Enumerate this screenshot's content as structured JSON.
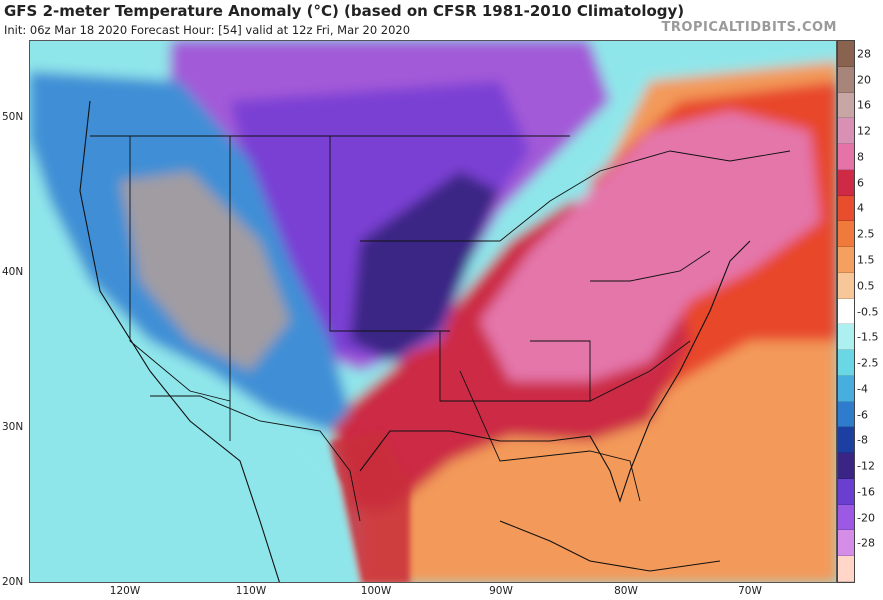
{
  "header": {
    "title": "GFS 2-meter Temperature Anomaly (°C) (based on CFSR 1981-2010 Climatology)",
    "subtitle": "Init: 06z Mar 18 2020   Forecast Hour: [54]   valid at 12z Fri, Mar 20 2020",
    "brand": "TROPICALTIDBITS.COM"
  },
  "axes": {
    "lat_labels": [
      "50N",
      "40N",
      "30N",
      "20N"
    ],
    "lon_labels": [
      "120W",
      "110W",
      "100W",
      "90W",
      "80W",
      "70W"
    ]
  },
  "legend": {
    "ticks": [
      "28",
      "20",
      "16",
      "12",
      "8",
      "6",
      "4",
      "2.5",
      "1.5",
      "0.5",
      "-0.5",
      "-1.5",
      "-2.5",
      "-4",
      "-6",
      "-8",
      "-12",
      "-16",
      "-20",
      "-28"
    ],
    "colors": [
      "#8a6350",
      "#a8857a",
      "#c8a6a6",
      "#d890b4",
      "#e573a8",
      "#ce2a46",
      "#e84d2d",
      "#ef7a3c",
      "#f4a060",
      "#f7c79a",
      "#ffffff",
      "#aef0f0",
      "#6ad7e4",
      "#48aee0",
      "#2f7ccd",
      "#1e3fa2",
      "#3a2585",
      "#6a3fcf",
      "#9c59e3",
      "#d48ee8",
      "#ffd6c8"
    ]
  },
  "map": {
    "colors": {
      "ocean_warm": "#f39a5a",
      "ocean_hot": "#e8462c",
      "southeast_red": "#cc2b45",
      "northeast_pink": "#e476aa",
      "plains_purple": "#7a40d4",
      "north_violet": "#a35ad8",
      "west_blue": "#3f8fd6",
      "pacific_cyan": "#8fe6ea",
      "borders": "#111111"
    }
  }
}
